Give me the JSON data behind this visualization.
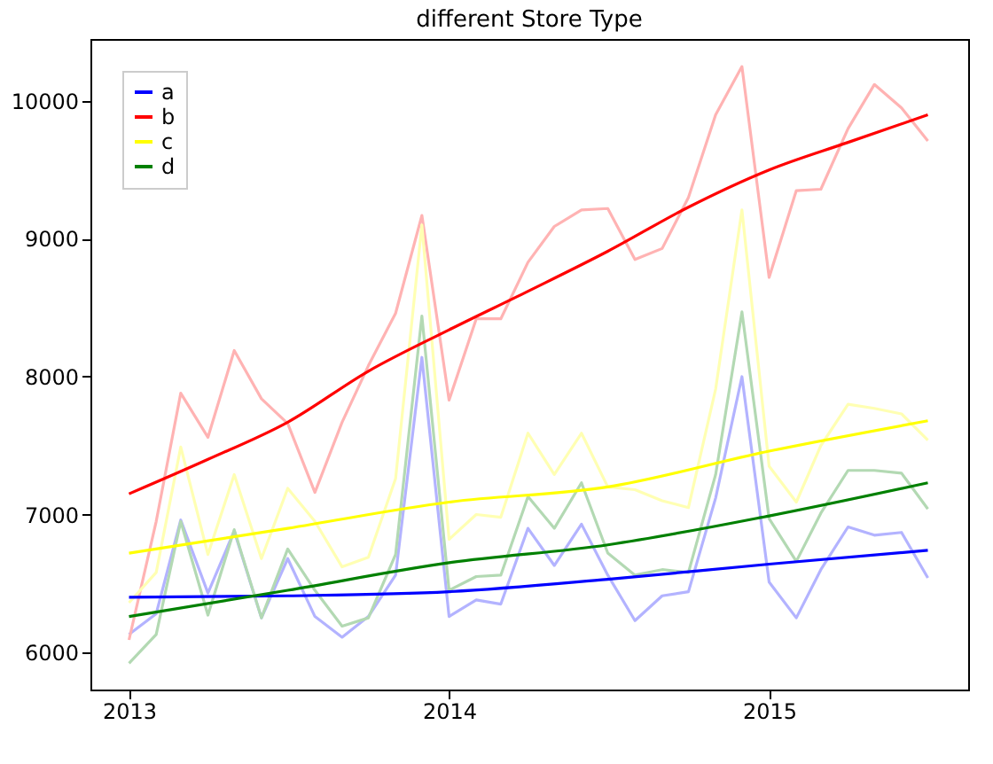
{
  "chart_data": {
    "type": "line",
    "title": "different Store Type",
    "x": [
      "2013-01",
      "2013-02",
      "2013-03",
      "2013-04",
      "2013-05",
      "2013-06",
      "2013-07",
      "2013-08",
      "2013-09",
      "2013-10",
      "2013-11",
      "2013-12",
      "2014-01",
      "2014-02",
      "2014-03",
      "2014-04",
      "2014-05",
      "2014-06",
      "2014-07",
      "2014-08",
      "2014-09",
      "2014-10",
      "2014-11",
      "2014-12",
      "2015-01",
      "2015-02",
      "2015-03",
      "2015-04",
      "2015-05",
      "2015-06",
      "2015-07"
    ],
    "series": [
      {
        "color": "#b3b3ff",
        "values": [
          6130,
          6280,
          6960,
          6430,
          6880,
          6250,
          6680,
          6260,
          6110,
          6260,
          6560,
          8140,
          6260,
          6380,
          6350,
          6900,
          6630,
          6930,
          6560,
          6230,
          6410,
          6440,
          7120,
          8000,
          6510,
          6250,
          6600,
          6910,
          6850,
          6870,
          6540
        ]
      },
      {
        "color": "#ffb3b3",
        "values": [
          6090,
          6950,
          7880,
          7560,
          8190,
          7840,
          7660,
          7160,
          7670,
          8080,
          8460,
          9170,
          7830,
          8420,
          8420,
          8830,
          9090,
          9210,
          9220,
          8850,
          8930,
          9300,
          9900,
          10250,
          8720,
          9350,
          9360,
          9800,
          10120,
          9950,
          9710
        ]
      },
      {
        "color": "#ffffb3",
        "values": [
          6360,
          6580,
          7490,
          6710,
          7290,
          6680,
          7190,
          6950,
          6620,
          6690,
          7260,
          9100,
          6820,
          7000,
          6980,
          7590,
          7290,
          7590,
          7200,
          7180,
          7100,
          7050,
          7910,
          9210,
          7350,
          7090,
          7500,
          7800,
          7770,
          7730,
          7540
        ]
      },
      {
        "color": "#b3d9b3",
        "values": [
          5920,
          6130,
          6950,
          6270,
          6890,
          6250,
          6750,
          6450,
          6190,
          6250,
          6710,
          8440,
          6450,
          6550,
          6560,
          7130,
          6900,
          7230,
          6720,
          6560,
          6600,
          6580,
          7290,
          8470,
          6970,
          6660,
          7010,
          7320,
          7320,
          7300,
          7040
        ]
      },
      {
        "name": "a",
        "color": "#0000ff",
        "x": [
          "2013-01",
          "2013-07",
          "2014-01",
          "2014-07",
          "2015-01",
          "2015-07"
        ],
        "values": [
          6400,
          6410,
          6440,
          6530,
          6640,
          6740
        ]
      },
      {
        "name": "b",
        "color": "#ff0000",
        "x": [
          "2013-01",
          "2013-04",
          "2013-07",
          "2013-10",
          "2014-01",
          "2014-04",
          "2014-07",
          "2014-10",
          "2015-01",
          "2015-04",
          "2015-07"
        ],
        "values": [
          7150,
          7400,
          7670,
          8040,
          8340,
          8620,
          8910,
          9230,
          9500,
          9700,
          9900
        ]
      },
      {
        "name": "c",
        "color": "#ffff00",
        "x": [
          "2013-01",
          "2013-07",
          "2014-01",
          "2014-07",
          "2015-01",
          "2015-07"
        ],
        "values": [
          6720,
          6900,
          7090,
          7200,
          7460,
          7680
        ]
      },
      {
        "name": "d",
        "color": "#008000",
        "x": [
          "2013-01",
          "2013-07",
          "2014-01",
          "2014-07",
          "2015-01",
          "2015-07"
        ],
        "values": [
          6260,
          6450,
          6650,
          6780,
          6990,
          7230
        ]
      }
    ],
    "xlim": [
      "2012-11-18",
      "2015-08-16"
    ],
    "xticks": [
      "2013",
      "2014",
      "2015"
    ],
    "ylim": [
      5730,
      10450
    ],
    "yticks": [
      6000,
      7000,
      8000,
      9000,
      10000
    ],
    "grid": false,
    "legend": "top left"
  }
}
